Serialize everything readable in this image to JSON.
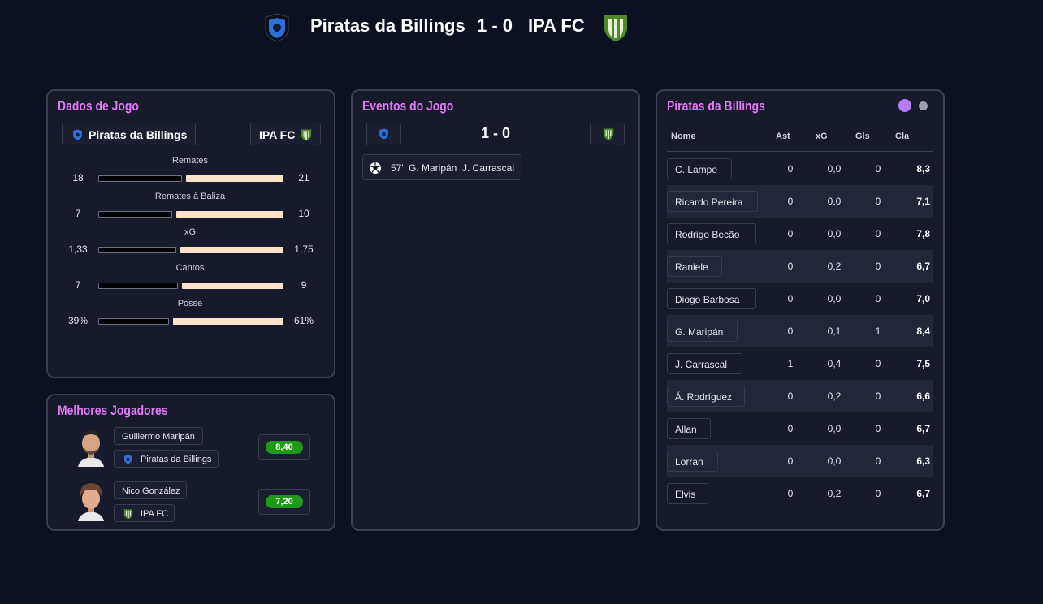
{
  "header": {
    "home_team": "Piratas da Billings",
    "score": "1 - 0",
    "away_team": "IPA FC"
  },
  "match_stats": {
    "title": "Dados de Jogo",
    "home_team": "Piratas da Billings",
    "away_team": "IPA FC",
    "rows": [
      {
        "label": "Remates",
        "home": "18",
        "away": "21",
        "home_frac": 0.46
      },
      {
        "label": "Remates à Baliza",
        "home": "7",
        "away": "10",
        "home_frac": 0.41
      },
      {
        "label": "xG",
        "home": "1,33",
        "away": "1,75",
        "home_frac": 0.43
      },
      {
        "label": "Cantos",
        "home": "7",
        "away": "9",
        "home_frac": 0.44
      },
      {
        "label": "Posse",
        "home": "39%",
        "away": "61%",
        "home_frac": 0.39
      }
    ]
  },
  "best_players": {
    "title": "Melhores Jogadores",
    "players": [
      {
        "name": "Guillermo Maripán",
        "team": "Piratas da Billings",
        "rating": "8,40"
      },
      {
        "name": "Nico González",
        "team": "IPA FC",
        "rating": "7,20"
      }
    ]
  },
  "events": {
    "title": "Eventos do Jogo",
    "score": "1 - 0",
    "items": [
      {
        "minute": "57'",
        "scorer": "G. Maripán",
        "assist": "J. Carrascal",
        "icon": "soccer-ball-icon"
      }
    ]
  },
  "lineup": {
    "title": "Piratas da Billings",
    "toggle_colors": [
      "#b57cf5",
      "#9aa0ad"
    ],
    "columns": [
      "Nome",
      "Ast",
      "xG",
      "Gls",
      "Cla"
    ],
    "players": [
      {
        "name": "C. Lampe",
        "ast": "0",
        "xg": "0,0",
        "gls": "0",
        "rating": "8,3"
      },
      {
        "name": "Ricardo Pereira",
        "ast": "0",
        "xg": "0,0",
        "gls": "0",
        "rating": "7,1"
      },
      {
        "name": "Rodrigo Becão",
        "ast": "0",
        "xg": "0,0",
        "gls": "0",
        "rating": "7,8"
      },
      {
        "name": "Raniele",
        "ast": "0",
        "xg": "0,2",
        "gls": "0",
        "rating": "6,7"
      },
      {
        "name": "Diogo Barbosa",
        "ast": "0",
        "xg": "0,0",
        "gls": "0",
        "rating": "7,0"
      },
      {
        "name": "G. Maripán",
        "ast": "0",
        "xg": "0,1",
        "gls": "1",
        "rating": "8,4"
      },
      {
        "name": "J. Carrascal",
        "ast": "1",
        "xg": "0,4",
        "gls": "0",
        "rating": "7,5"
      },
      {
        "name": "Á. Rodríguez",
        "ast": "0",
        "xg": "0,2",
        "gls": "0",
        "rating": "6,6"
      },
      {
        "name": "Allan",
        "ast": "0",
        "xg": "0,0",
        "gls": "0",
        "rating": "6,7"
      },
      {
        "name": "Lorran",
        "ast": "0",
        "xg": "0,0",
        "gls": "0",
        "rating": "6,3"
      },
      {
        "name": "Elvis",
        "ast": "0",
        "xg": "0,2",
        "gls": "0",
        "rating": "6,7"
      }
    ]
  },
  "colors": {
    "background": "#0b1120",
    "panel": "#171a2b",
    "accent_title": "#e17bf5",
    "rating_green": "#1f9a16",
    "home_crest": "#2f6fd8",
    "away_crest": "#4e8a2a"
  }
}
